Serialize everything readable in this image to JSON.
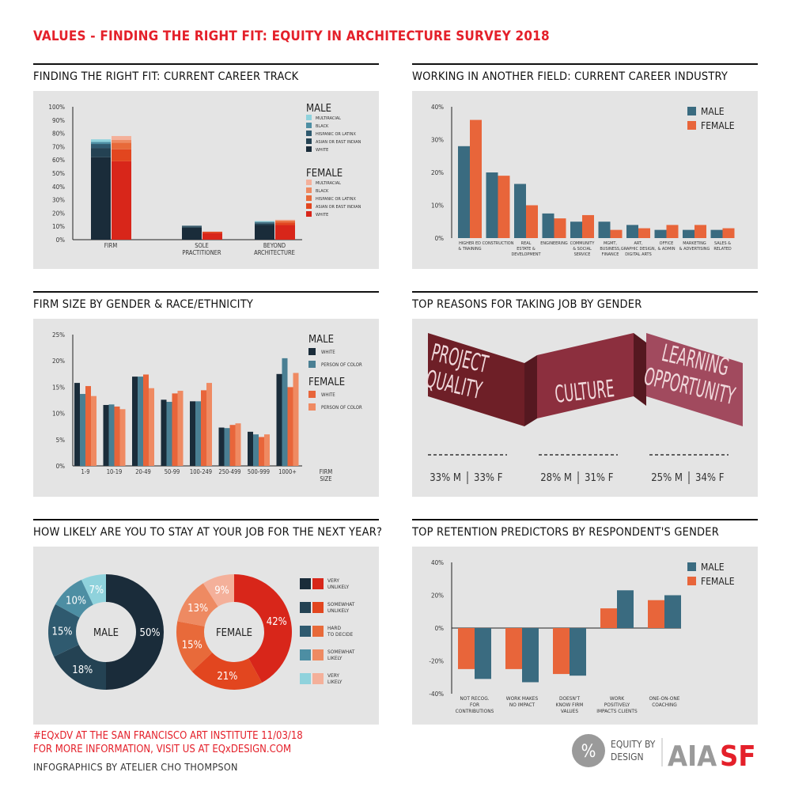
{
  "title": "VALUES - FINDING THE RIGHT FIT: EQUITY IN ARCHITECTURE SURVEY 2018",
  "footer": {
    "line1": "#EQxDV AT THE SAN FRANCISCO ART INSTITUTE 11/03/18",
    "line2": "FOR MORE INFORMATION, VISIT US AT EQxDESIGN.COM",
    "credit": "INFOGRAPHICS BY ATELIER CHO THOMPSON",
    "logo_eq_line1": "EQUITY BY",
    "logo_eq_line2": "DESIGN",
    "logo_aia": "AIA",
    "logo_sf": "SF",
    "logo_symbol": "%"
  },
  "colors": {
    "male_white": "#1a2c3a",
    "male_asian": "#244253",
    "male_hispanic": "#2f5a6f",
    "male_black": "#4d8ea3",
    "male_multi": "#8fd2dc",
    "female_white": "#d8261a",
    "female_asian": "#e2461f",
    "female_hispanic": "#e86a3a",
    "female_black": "#ee8a62",
    "female_multi": "#f4b09a",
    "male": "#3a6b80",
    "male_poc": "#4a7f93",
    "female": "#e8653a",
    "female_poc": "#ef8a62",
    "reason1": "#6e1f27",
    "reason2": "#8c2f3e",
    "reason3": "#a14a5e"
  },
  "chart_data": [
    {
      "type": "bar",
      "title": "FINDING THE RIGHT FIT: CURRENT CAREER TRACK",
      "stacked": true,
      "categories": [
        "FIRM",
        "SOLE\nPRACTITIONER",
        "BEYOND\nARCHITECTURE"
      ],
      "yticks": [
        "0%",
        "10%",
        "20%",
        "30%",
        "40%",
        "50%",
        "60%",
        "70%",
        "80%",
        "90%",
        "100%"
      ],
      "ylim": [
        0,
        100
      ],
      "legend_groups": [
        {
          "name": "MALE",
          "items": [
            "MULTIRACIAL",
            "BLACK",
            "HISPANIC OR LATINX",
            "ASIAN OR EAST INDIAN",
            "WHITE"
          ]
        },
        {
          "name": "FEMALE",
          "items": [
            "MULTIRACIAL",
            "BLACK",
            "HISPANIC OR LATINX",
            "ASIAN OR EAST INDIAN",
            "WHITE"
          ]
        }
      ],
      "male_series": [
        {
          "name": "WHITE",
          "values": [
            62,
            9,
            11
          ]
        },
        {
          "name": "ASIAN OR EAST INDIAN",
          "values": [
            7,
            1,
            1
          ]
        },
        {
          "name": "HISPANIC OR LATINX",
          "values": [
            3,
            0.5,
            1
          ]
        },
        {
          "name": "BLACK",
          "values": [
            1.5,
            0,
            0.5
          ]
        },
        {
          "name": "MULTIRACIAL",
          "values": [
            2,
            0,
            0.5
          ]
        }
      ],
      "female_series": [
        {
          "name": "WHITE",
          "values": [
            59,
            5,
            11
          ]
        },
        {
          "name": "ASIAN OR EAST INDIAN",
          "values": [
            9,
            1,
            2
          ]
        },
        {
          "name": "HISPANIC OR LATINX",
          "values": [
            5,
            0,
            1
          ]
        },
        {
          "name": "BLACK",
          "values": [
            2,
            0,
            0.5
          ]
        },
        {
          "name": "MULTIRACIAL",
          "values": [
            3,
            0,
            0.5
          ]
        }
      ]
    },
    {
      "type": "bar",
      "title": "WORKING IN ANOTHER FIELD: CURRENT CAREER INDUSTRY",
      "categories": [
        "HIGHER ED\n& TRAINING",
        "CONSTRUCTION",
        "REAL\nESTATE &\nDEVELOPMENT",
        "ENGINEERING",
        "COMMUNITY\n& SOCIAL\nSERVICE",
        "MGMT,\nBUSINESS,\nFINANCE",
        "ART,\nGRAPHIC DESIGN,\nDIGITAL ARTS",
        "OFFICE\n& ADMIN",
        "MARKETING\n& ADVERTISING",
        "SALES &\nRELATED"
      ],
      "series": [
        {
          "name": "MALE",
          "values": [
            28,
            20,
            16.5,
            7.5,
            5,
            5,
            4,
            2.5,
            2.5,
            2.5
          ]
        },
        {
          "name": "FEMALE",
          "values": [
            36,
            19,
            10,
            6,
            7,
            2.5,
            3,
            4,
            4,
            3
          ]
        }
      ],
      "yticks": [
        "0%",
        "10%",
        "20%",
        "30%",
        "40%"
      ],
      "ylim": [
        0,
        40
      ]
    },
    {
      "type": "bar",
      "title": "FIRM SIZE BY GENDER & RACE/ETHNICITY",
      "categories": [
        "1-9",
        "10-19",
        "20-49",
        "50-99",
        "100-249",
        "250-499",
        "500-999",
        "1000+"
      ],
      "xlabel": "FIRM\nSIZE",
      "legend_groups": [
        {
          "name": "MALE",
          "items": [
            "WHITE",
            "PERSON OF COLOR"
          ]
        },
        {
          "name": "FEMALE",
          "items": [
            "WHITE",
            "PERSON OF COLOR"
          ]
        }
      ],
      "series": [
        {
          "name": "MALE WHITE",
          "values": [
            15.8,
            11.6,
            17,
            12.6,
            12.3,
            7.3,
            6.5,
            17.5
          ]
        },
        {
          "name": "MALE PERSON OF COLOR",
          "values": [
            13.7,
            11.7,
            17,
            12.2,
            12.3,
            7.2,
            6,
            20.5
          ]
        },
        {
          "name": "FEMALE WHITE",
          "values": [
            15.2,
            11.3,
            17.4,
            13.8,
            14.4,
            7.8,
            5.5,
            15
          ]
        },
        {
          "name": "FEMALE PERSON OF COLOR",
          "values": [
            13.3,
            10.8,
            14.8,
            14.3,
            15.8,
            8.1,
            6,
            17.7
          ]
        }
      ],
      "yticks": [
        "0%",
        "5%",
        "10%",
        "15%",
        "20%",
        "25%"
      ],
      "ylim": [
        0,
        25
      ]
    },
    {
      "type": "table",
      "title": "TOP REASONS FOR TAKING JOB BY GENDER",
      "reasons": [
        {
          "label_lines": [
            "PROJECT",
            "QUALITY"
          ],
          "male": "33% M",
          "female": "33% F"
        },
        {
          "label_lines": [
            "CULTURE"
          ],
          "male": "28% M",
          "female": "31% F"
        },
        {
          "label_lines": [
            "LEARNING",
            "OPPORTUNITY"
          ],
          "male": "25% M",
          "female": "34% F"
        }
      ]
    },
    {
      "type": "pie",
      "title": "HOW LIKELY ARE YOU TO STAY AT YOUR JOB FOR THE NEXT YEAR?",
      "legend": [
        "VERY\nUNLIKELY",
        "SOMEWHAT\nUNLIKELY",
        "HARD\nTO DECIDE",
        "SOMEWHAT\nLIKELY",
        "VERY\nLIKELY"
      ],
      "donuts": [
        {
          "name": "MALE",
          "values": [
            50,
            18,
            15,
            10,
            7
          ],
          "labels": [
            "50%",
            "18%",
            "15%",
            "10%",
            "7%"
          ]
        },
        {
          "name": "FEMALE",
          "values": [
            42,
            21,
            15,
            13,
            9
          ],
          "labels": [
            "42%",
            "21%",
            "15%",
            "13%",
            "9%"
          ]
        }
      ]
    },
    {
      "type": "bar",
      "title": "TOP RETENTION PREDICTORS BY RESPONDENT'S GENDER",
      "categories": [
        "NOT RECOG.\nFOR\nCONTRIBUTIONS",
        "WORK MAKES\nNO IMPACT",
        "DOESN'T\nKNOW FIRM\nVALUES",
        "WORK\nPOSITIVELY\nIMPACTS CLIENTS",
        "ONE-ON-ONE\nCOACHING"
      ],
      "series": [
        {
          "name": "FEMALE",
          "values": [
            -25,
            -25,
            -28,
            12,
            17
          ]
        },
        {
          "name": "MALE",
          "values": [
            -31,
            -33,
            -29,
            23,
            20
          ]
        }
      ],
      "legend": [
        "MALE",
        "FEMALE"
      ],
      "yticks": [
        "-40%",
        "-20%",
        "0%",
        "20%",
        "40%"
      ],
      "ylim": [
        -40,
        40
      ]
    }
  ]
}
